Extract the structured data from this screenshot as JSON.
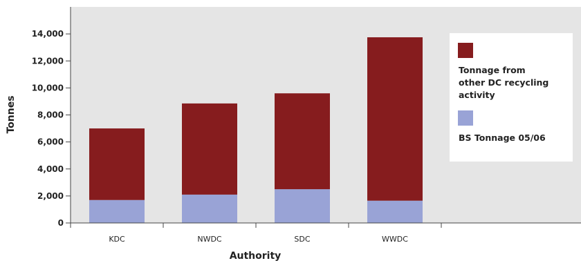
{
  "chart_data": {
    "type": "bar",
    "stacked": true,
    "categories": [
      "KDC",
      "NWDC",
      "SDC",
      "WWDC"
    ],
    "series": [
      {
        "name": "BS Tonnage 05/06",
        "color": "#99a3d6",
        "values": [
          1700,
          2100,
          2500,
          1650
        ]
      },
      {
        "name": "Tonnage from other DC recycling activity",
        "color": "#861c1e",
        "values": [
          5300,
          6750,
          7100,
          12100
        ]
      }
    ],
    "xlabel": "Authority",
    "ylabel": "Tonnes",
    "ylim": [
      0,
      16000
    ],
    "yticks": [
      "0",
      "2,000",
      "4,000",
      "6,000",
      "8,000",
      "10,000",
      "12,000",
      "14,000"
    ],
    "ytick_values": [
      0,
      2000,
      4000,
      6000,
      8000,
      10000,
      12000,
      14000
    ],
    "grid": false,
    "legend_position": "right",
    "legend_entries": [
      {
        "series": 1,
        "lines": [
          "Tonnage from",
          "other DC recycling",
          "activity"
        ]
      },
      {
        "series": 0,
        "lines": [
          "BS Tonnage 05/06"
        ]
      }
    ],
    "plot_background": "#e5e5e5"
  }
}
